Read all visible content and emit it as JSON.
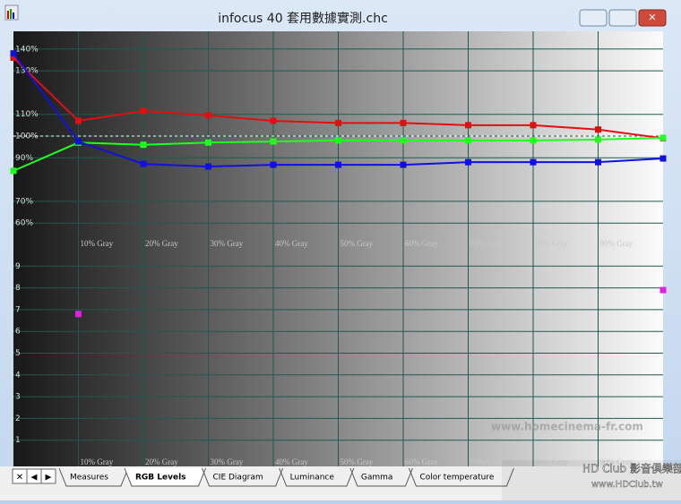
{
  "window": {
    "title": "infocus 40 套用數據實測.chc",
    "tabs": [
      "Measures",
      "RGB Levels",
      "CIE Diagram",
      "Luminance",
      "Gamma",
      "Color temperature"
    ],
    "watermark": "www.homecinema-fr.com",
    "logo": "HD Club 影音俱樂部",
    "logo_url": "www.HDClub.tw"
  },
  "chart_data": [
    {
      "type": "line",
      "x": [
        0,
        10,
        20,
        30,
        40,
        50,
        60,
        70,
        80,
        90,
        100
      ],
      "xlim": [
        0,
        100
      ],
      "xticks": [
        {
          "value": 10,
          "label": "10% Gray"
        },
        {
          "value": 20,
          "label": "20% Gray"
        },
        {
          "value": 30,
          "label": "30% Gray"
        },
        {
          "value": 40,
          "label": "40% Gray"
        },
        {
          "value": 50,
          "label": "50% Gray"
        },
        {
          "value": 60,
          "label": "60% Gray"
        },
        {
          "value": 70,
          "label": "70% Gray"
        },
        {
          "value": 80,
          "label": "80% Gray"
        },
        {
          "value": 90,
          "label": "90% Gray"
        }
      ],
      "ylim": [
        60,
        140
      ],
      "yticks": [
        {
          "value": 140,
          "label": "140%"
        },
        {
          "value": 130,
          "label": "130%"
        },
        {
          "value": 110,
          "label": "110%"
        },
        {
          "value": 100,
          "label": "100%"
        },
        {
          "value": 90,
          "label": "90%"
        },
        {
          "value": 70,
          "label": "70%"
        },
        {
          "value": 60,
          "label": "60%"
        }
      ],
      "reference": 100,
      "series": [
        {
          "color": "#e01010",
          "values": [
            136,
            107,
            111.5,
            109.5,
            107,
            106,
            106,
            105,
            105,
            103,
            99
          ]
        },
        {
          "color": "#20ff20",
          "values": [
            84,
            97,
            96,
            97,
            97.5,
            98,
            98,
            98,
            98,
            98.4,
            99.2
          ]
        },
        {
          "color": "#1010e0",
          "values": [
            138,
            97.5,
            87.2,
            86,
            86.8,
            86.8,
            86.8,
            88,
            88,
            88,
            89.7
          ]
        }
      ]
    },
    {
      "type": "line",
      "x": [
        0,
        10,
        20,
        30,
        40,
        50,
        60,
        70,
        80,
        90,
        100
      ],
      "xlim": [
        0,
        100
      ],
      "xticks": [
        {
          "value": 10,
          "label": "10% Gray"
        },
        {
          "value": 20,
          "label": "20% Gray"
        },
        {
          "value": 30,
          "label": "30% Gray"
        },
        {
          "value": 40,
          "label": "40% Gray"
        },
        {
          "value": 50,
          "label": "50% Gray"
        },
        {
          "value": 60,
          "label": "60% Gray"
        },
        {
          "value": 70,
          "label": "70% Gray"
        },
        {
          "value": 80,
          "label": "80% Gray"
        },
        {
          "value": 90,
          "label": "90% Gray"
        }
      ],
      "ylim": [
        0,
        10
      ],
      "yticks": [
        1,
        2,
        3,
        4,
        5,
        6,
        7,
        8,
        9
      ],
      "series": [
        {
          "color": "#e020e0",
          "values": [
            null,
            6.8,
            null,
            null,
            null,
            null,
            null,
            null,
            null,
            null,
            7.9
          ]
        }
      ]
    }
  ]
}
